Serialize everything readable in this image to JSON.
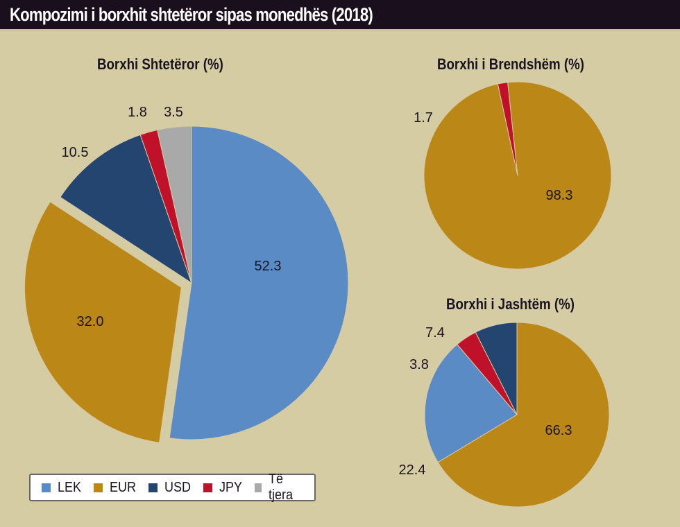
{
  "header": {
    "title": "Kompozimi i borxhit shtetëror sipas monedhës (2018)"
  },
  "colors": {
    "LEK": "#5b8bc4",
    "EUR": "#bb8818",
    "USD": "#23456f",
    "JPY": "#c0112b",
    "Te tjera": "#a9a9a9",
    "background": "#d6cca4",
    "titlebar": "#1a0f1c"
  },
  "legend": {
    "items": [
      {
        "label": "LEK",
        "color": "#5b8bc4"
      },
      {
        "label": "EUR",
        "color": "#bb8818"
      },
      {
        "label": "USD",
        "color": "#23456f"
      },
      {
        "label": "JPY",
        "color": "#c0112b"
      },
      {
        "label": "Të tjera",
        "color": "#a9a9a9"
      }
    ]
  },
  "chart_data": [
    {
      "type": "pie",
      "title": "Borxhi Shtetëror (%)",
      "categories": [
        "LEK",
        "EUR",
        "USD",
        "JPY",
        "Të tjera"
      ],
      "values": [
        52.3,
        32.0,
        10.5,
        1.8,
        3.5
      ],
      "labels": [
        "52.3",
        "32.0",
        "10.5",
        "1.8",
        "3.5"
      ],
      "exploded": "EUR"
    },
    {
      "type": "pie",
      "title": "Borxhi i Brendshëm (%)",
      "categories": [
        "EUR",
        "JPY"
      ],
      "values": [
        98.3,
        1.7
      ],
      "labels": [
        "98.3",
        "1.7"
      ]
    },
    {
      "type": "pie",
      "title": "Borxhi i Jashtëm (%)",
      "categories": [
        "EUR",
        "LEK",
        "JPY",
        "USD"
      ],
      "values": [
        66.3,
        22.4,
        3.8,
        7.4
      ],
      "labels": [
        "66.3",
        "22.4",
        "3.8",
        "7.4"
      ]
    }
  ]
}
